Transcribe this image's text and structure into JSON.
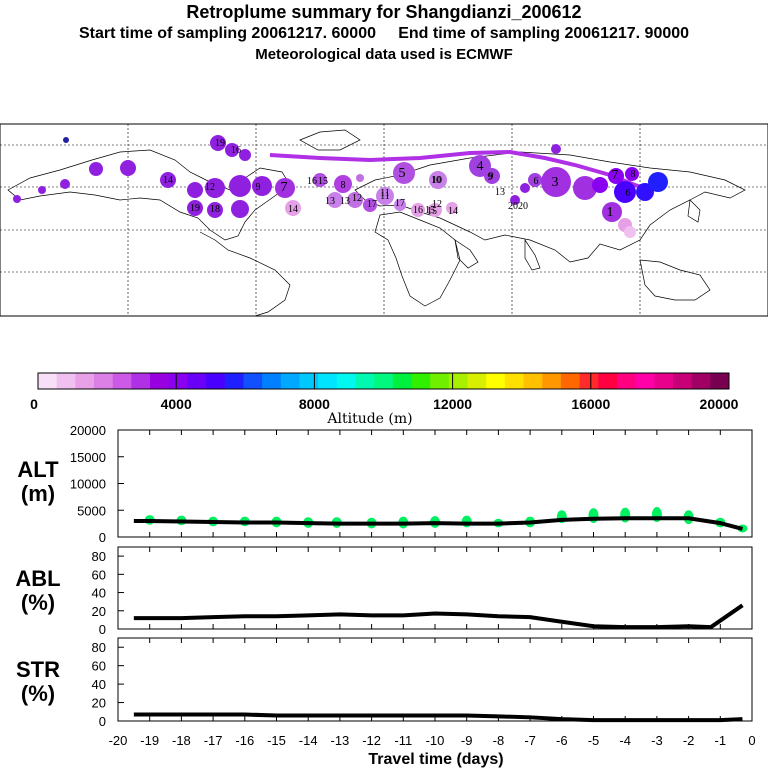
{
  "header": {
    "title": "Retroplume summary for Shangdianzi_200612",
    "start_label": "Start time of sampling 20061217. 60000",
    "end_label": "End time of sampling 20061217. 90000",
    "met_label": "Meteorological data used is ECMWF"
  },
  "colorbar": {
    "labels": [
      "0",
      "4000",
      "8000",
      "12000",
      "16000",
      "20000"
    ],
    "title": "Altitude (m)",
    "colors": [
      "#f7e0f7",
      "#f0c0f0",
      "#e8a0e8",
      "#dc80e6",
      "#cc5ae6",
      "#b030e6",
      "#9900e0",
      "#8a00f0",
      "#6a00f8",
      "#4a00ff",
      "#2020ff",
      "#1050ff",
      "#0080ff",
      "#00a8ff",
      "#00c8ff",
      "#00e4ff",
      "#00f8f0",
      "#00f8b0",
      "#00f880",
      "#00f040",
      "#30f000",
      "#70f000",
      "#a8f000",
      "#d8f000",
      "#ffff00",
      "#ffe000",
      "#ffc000",
      "#ff9800",
      "#ff6800",
      "#ff2a2a",
      "#ff0040",
      "#ff0080",
      "#ff00a8",
      "#e8008c",
      "#c80078",
      "#a00064",
      "#780050"
    ]
  },
  "chart_data": [
    {
      "type": "line",
      "panel": "ALT",
      "ylabel": "ALT\n(m)",
      "ylabel_line1": "ALT",
      "ylabel_line2": "(m)",
      "ylim": [
        0,
        20000
      ],
      "yticks": [
        0,
        5000,
        10000,
        15000,
        20000
      ],
      "ytick_labels": [
        "0",
        "5000",
        "10000",
        "15000",
        "20000"
      ],
      "x": [
        -19.5,
        -19,
        -18,
        -17,
        -16,
        -15,
        -14,
        -13,
        -12,
        -11,
        -10,
        -9,
        -8,
        -7,
        -6,
        -5,
        -4,
        -3,
        -2,
        -1,
        -0.3
      ],
      "series": [
        {
          "name": "mean altitude",
          "values": [
            3000,
            3000,
            2900,
            2800,
            2700,
            2700,
            2600,
            2500,
            2500,
            2500,
            2600,
            2500,
            2500,
            2700,
            3200,
            3400,
            3500,
            3500,
            3500,
            2600,
            1500
          ]
        }
      ],
      "scatter_color": "#00f060",
      "scatter_x": [
        -19,
        -18,
        -17,
        -16,
        -15,
        -14,
        -13.1,
        -12,
        -11,
        -10,
        -9,
        -8,
        -7,
        -6,
        -5,
        -4,
        -3,
        -2,
        -1,
        -0.3
      ],
      "scatter_y": [
        3200,
        3100,
        2900,
        2900,
        2800,
        2700,
        2700,
        2600,
        2700,
        2800,
        2900,
        2600,
        2800,
        3800,
        4000,
        4100,
        4200,
        3700,
        2700,
        1600
      ],
      "scatter_spread": [
        900,
        900,
        900,
        900,
        1000,
        1000,
        1000,
        1000,
        1100,
        1100,
        1100,
        800,
        1000,
        1200,
        1400,
        1400,
        1400,
        1300,
        900,
        500
      ]
    },
    {
      "type": "line",
      "panel": "ABL",
      "ylabel_line1": "ABL",
      "ylabel_line2": "(%)",
      "ylim": [
        0,
        90
      ],
      "yticks": [
        0,
        20,
        40,
        60,
        80
      ],
      "ytick_labels": [
        "0",
        "20",
        "40",
        "60",
        "80"
      ],
      "x": [
        -19.5,
        -19,
        -18,
        -17,
        -16,
        -15,
        -14,
        -13,
        -12,
        -11,
        -10,
        -9,
        -8,
        -7,
        -6,
        -5,
        -4,
        -3,
        -2,
        -1.3,
        -0.3
      ],
      "series": [
        {
          "name": "ABL fraction",
          "values": [
            12,
            12,
            12,
            13,
            14,
            14,
            15,
            16,
            15,
            15,
            17,
            16,
            14,
            13,
            8,
            3,
            2,
            2,
            3,
            2,
            26
          ]
        }
      ]
    },
    {
      "type": "line",
      "panel": "STR",
      "ylabel_line1": "STR",
      "ylabel_line2": "(%)",
      "ylim": [
        0,
        90
      ],
      "yticks": [
        0,
        20,
        40,
        60,
        80
      ],
      "ytick_labels": [
        "0",
        "20",
        "40",
        "60",
        "80"
      ],
      "x": [
        -19.5,
        -19,
        -18,
        -17,
        -16,
        -15,
        -14,
        -13,
        -12,
        -11,
        -10,
        -9,
        -8,
        -7,
        -6,
        -5,
        -4,
        -3,
        -2,
        -1,
        -0.3
      ],
      "series": [
        {
          "name": "stratospheric fraction",
          "values": [
            7,
            7,
            7,
            7,
            7,
            6,
            6,
            6,
            6,
            6,
            6,
            6,
            5,
            4,
            2,
            1,
            1,
            1,
            1,
            1,
            2
          ]
        }
      ],
      "xlabel": "Travel time (days)",
      "xlim": [
        -20,
        0
      ],
      "xticks": [
        -20,
        -19,
        -18,
        -17,
        -16,
        -15,
        -14,
        -13,
        -12,
        -11,
        -10,
        -9,
        -8,
        -7,
        -6,
        -5,
        -4,
        -3,
        -2,
        -1,
        0
      ],
      "xtick_labels": [
        "-20",
        "-19",
        "-18",
        "-17",
        "-16",
        "-15",
        "-14",
        "-13",
        "-12",
        "-11",
        "-10",
        "-9",
        "-8",
        "-7",
        "-6",
        "-5",
        "-4",
        "-3",
        "-2",
        "-1",
        "0"
      ]
    }
  ],
  "map": {
    "labels": [
      {
        "text": "20",
        "color": "#a040e0"
      },
      {
        "text": "20",
        "color": "#9020e0"
      },
      {
        "text": "17",
        "color": "#9020e0"
      },
      {
        "text": "15",
        "color": "#a040e0"
      },
      {
        "text": "14",
        "color": "#9020e0"
      },
      {
        "text": "13",
        "color": "#9020e0"
      },
      {
        "text": "12",
        "color": "#a040e0"
      },
      {
        "text": "11",
        "color": "#9020e0"
      },
      {
        "text": "10",
        "color": "#9020e0"
      },
      {
        "text": "9",
        "color": "#9020e0"
      },
      {
        "text": "7",
        "color": "#a030e0"
      },
      {
        "text": "16",
        "color": "#a030e0"
      },
      {
        "text": "15",
        "color": "#b050e0"
      },
      {
        "text": "8",
        "color": "#b040e0"
      },
      {
        "text": "13",
        "color": "#c070e0"
      },
      {
        "text": "11",
        "color": "#c880ea"
      },
      {
        "text": "13",
        "color": "#b050e0"
      },
      {
        "text": "12",
        "color": "#b050e0"
      },
      {
        "text": "17",
        "color": "#c070e0"
      },
      {
        "text": "5",
        "color": "#b050e0"
      },
      {
        "text": "10",
        "color": "#c880ea"
      },
      {
        "text": "4",
        "color": "#a040e0"
      },
      {
        "text": "9",
        "color": "#a040e0"
      },
      {
        "text": "3",
        "color": "#a030e0"
      },
      {
        "text": "6",
        "color": "#a040e0"
      },
      {
        "text": "7",
        "color": "#8a00f0"
      },
      {
        "text": "8",
        "color": "#6a00f8"
      },
      {
        "text": "6",
        "color": "#4a00ff"
      },
      {
        "text": "1",
        "color": "#a030e0"
      },
      {
        "text": "14",
        "color": "#e6a0e6"
      },
      {
        "text": "16",
        "color": "#e6a0e6"
      },
      {
        "text": "15",
        "color": "#e6a0e6"
      },
      {
        "text": "19",
        "color": "#9020e0"
      },
      {
        "text": "16",
        "color": "#9020e0"
      },
      {
        "text": "14",
        "color": "#9020e0"
      },
      {
        "text": "12",
        "color": "#9020e0"
      },
      {
        "text": "9",
        "color": "#b040e0"
      },
      {
        "text": "19",
        "color": "#9020e0"
      },
      {
        "text": "18",
        "color": "#9020e0"
      }
    ]
  }
}
